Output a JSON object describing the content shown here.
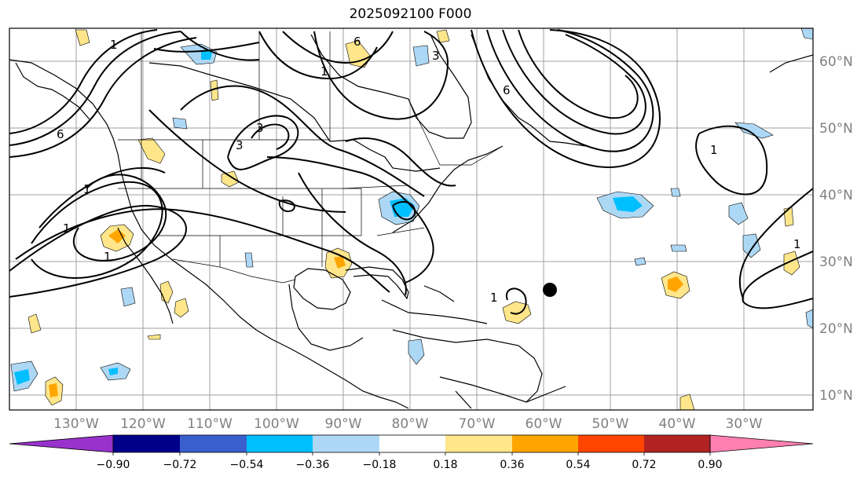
{
  "title": "2025092100 F000",
  "lat_labels": [
    "60°N",
    "50°N",
    "40°N",
    "30°N",
    "20°N",
    "10°N"
  ],
  "lon_labels": [
    "130°W",
    "120°W",
    "110°W",
    "100°W",
    "90°W",
    "80°W",
    "70°W",
    "60°W",
    "50°W",
    "40°W",
    "30°W"
  ],
  "colorbar": {
    "ticks": [
      "−0.90",
      "−0.72",
      "−0.54",
      "−0.36",
      "−0.18",
      "0.18",
      "0.36",
      "0.54",
      "0.72",
      "0.90"
    ],
    "colors": [
      "#9932cc",
      "#00008b",
      "#3a5fcd",
      "#00bfff",
      "#add8f5",
      "#ffffff",
      "#ffe68a",
      "#ffa500",
      "#ff4500",
      "#b22222",
      "#ff80b0"
    ]
  },
  "contour_labels": [
    "6",
    "6",
    "6",
    "3",
    "3",
    "1",
    "1",
    "1",
    "1",
    "1",
    "1",
    "3",
    "1",
    "1"
  ]
}
